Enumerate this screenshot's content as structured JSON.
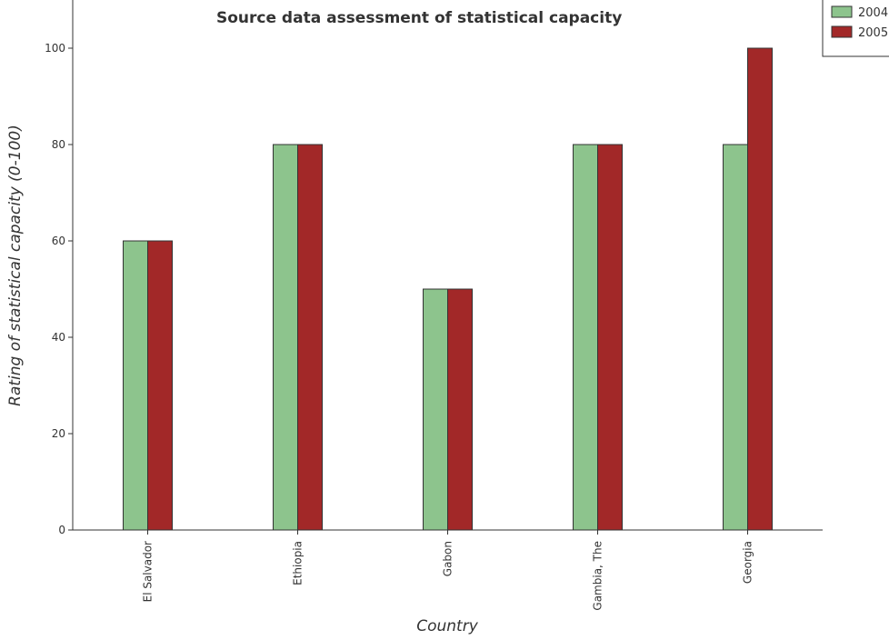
{
  "chart_data": {
    "type": "bar",
    "title": "Source data assessment of statistical capacity",
    "xlabel": "Country",
    "ylabel": "Rating of statistical capacity (0-100)",
    "categories": [
      "El Salvador",
      "Ethiopia",
      "Gabon",
      "Gambia, The",
      "Georgia"
    ],
    "series": [
      {
        "name": "2004",
        "color": "#8dc48d",
        "values": [
          60,
          80,
          50,
          80,
          80
        ]
      },
      {
        "name": "2005",
        "color": "#a22828",
        "values": [
          60,
          80,
          50,
          80,
          100
        ]
      }
    ],
    "ylim": [
      0,
      110
    ],
    "yticks": [
      0,
      20,
      40,
      60,
      80,
      100
    ],
    "grid": false,
    "legend_position": "top-right"
  }
}
